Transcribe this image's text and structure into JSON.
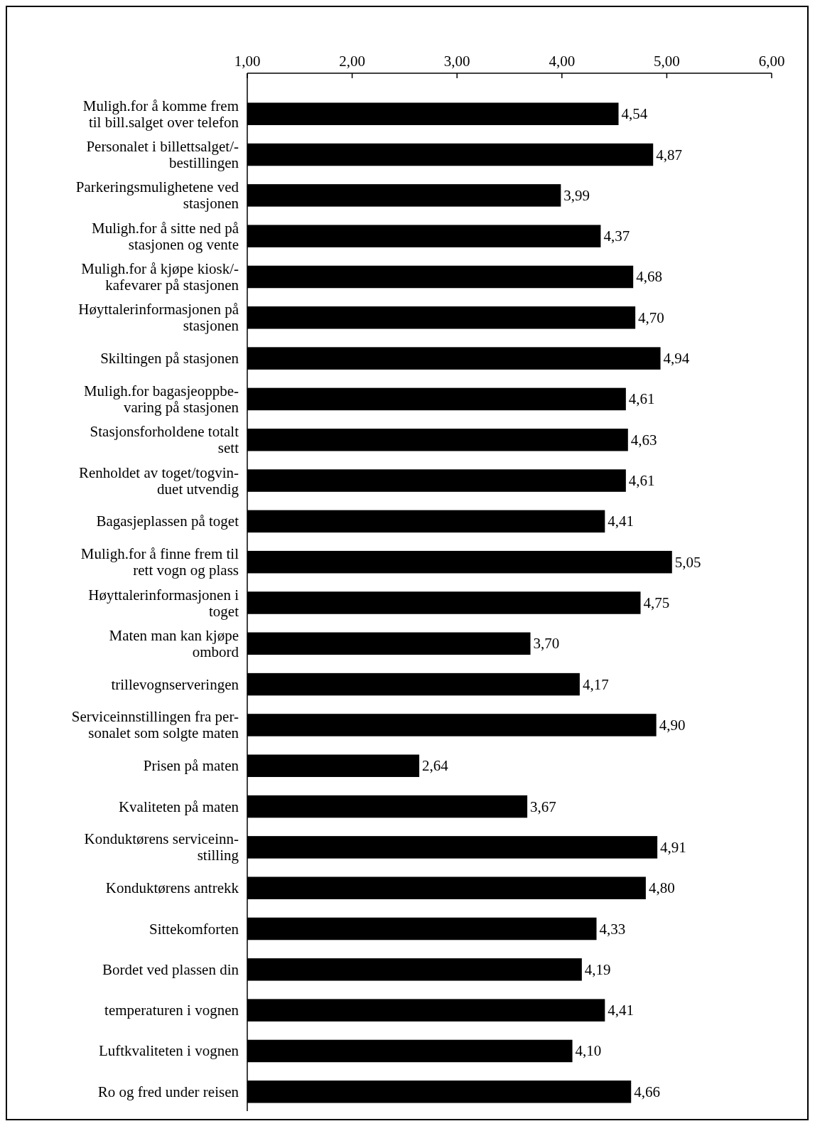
{
  "chart_data": {
    "type": "bar",
    "orientation": "horizontal",
    "categories": [
      "Muligh.for å komme frem\ntil bill.salget over telefon",
      "Personalet i billettsalget/-\nbestillingen",
      "Parkeringsmulighetene ved\nstasjonen",
      "Muligh.for å sitte ned på\nstasjonen og vente",
      "Muligh.for å kjøpe kiosk/-\nkafevarer på stasjonen",
      "Høyttalerinformasjonen på\nstasjonen",
      "Skiltingen på stasjonen",
      "Muligh.for bagasjeoppbe-\nvaring på stasjonen",
      "Stasjonsforholdene totalt\nsett",
      "Renholdet av toget/togvin-\nduet utvendig",
      "Bagasjeplassen på toget",
      "Muligh.for å finne frem til\nrett vogn og plass",
      "Høyttalerinformasjonen i\ntoget",
      "Maten man kan kjøpe\nombord",
      "trillevognserveringen",
      "Serviceinnstillingen fra per-\nsonalet som solgte maten",
      "Prisen på maten",
      "Kvaliteten på maten",
      "Konduktørens serviceinn-\nstilling",
      "Konduktørens antrekk",
      "Sittekomforten",
      "Bordet ved plassen din",
      "temperaturen i vognen",
      "Luftkvaliteten i vognen",
      "Ro og fred under reisen"
    ],
    "values": [
      4.54,
      4.87,
      3.99,
      4.37,
      4.68,
      4.7,
      4.94,
      4.61,
      4.63,
      4.61,
      4.41,
      5.05,
      4.75,
      3.7,
      4.17,
      4.9,
      2.64,
      3.67,
      4.91,
      4.8,
      4.33,
      4.19,
      4.41,
      4.1,
      4.66
    ],
    "value_labels": [
      "4,54",
      "4,87",
      "3,99",
      "4,37",
      "4,68",
      "4,70",
      "4,94",
      "4,61",
      "4,63",
      "4,61",
      "4,41",
      "5,05",
      "4,75",
      "3,70",
      "4,17",
      "4,90",
      "2,64",
      "3,67",
      "4,91",
      "4,80",
      "4,33",
      "4,19",
      "4,41",
      "4,10",
      "4,66"
    ],
    "color": "#000000",
    "xlim": [
      1,
      6
    ],
    "xticks": [
      {
        "value": 1,
        "label": "1,00"
      },
      {
        "value": 2,
        "label": "2,00"
      },
      {
        "value": 3,
        "label": "3,00"
      },
      {
        "value": 4,
        "label": "4,00"
      },
      {
        "value": 5,
        "label": "5,00"
      },
      {
        "value": 6,
        "label": "6,00"
      }
    ],
    "grid": false
  }
}
